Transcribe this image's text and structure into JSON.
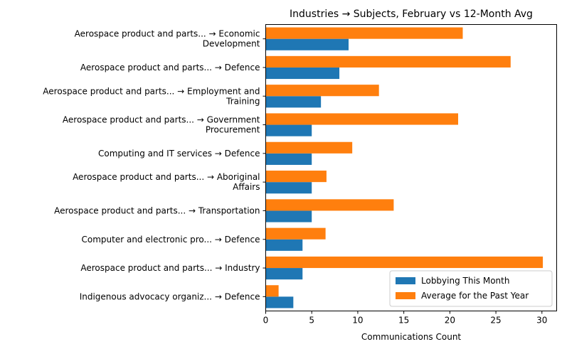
{
  "chart_data": {
    "type": "bar",
    "orientation": "horizontal",
    "title": "Industries → Subjects, February vs 12-Month Avg",
    "xlabel": "Communications Count",
    "ylabel": "",
    "xlim": [
      0,
      31.6
    ],
    "xticks": [
      0,
      5,
      10,
      15,
      20,
      25,
      30
    ],
    "grid": false,
    "legend_position": "lower-right",
    "categories": [
      [
        "Aerospace product and parts... → Economic",
        "Development"
      ],
      [
        "Aerospace product and parts... → Defence"
      ],
      [
        "Aerospace product and parts... → Employment and",
        "Training"
      ],
      [
        "Aerospace product and parts... → Government",
        "Procurement"
      ],
      [
        "Computing and IT services → Defence"
      ],
      [
        "Aerospace product and parts... → Aboriginal",
        "Affairs"
      ],
      [
        "Aerospace product and parts... → Transportation"
      ],
      [
        "Computer and electronic pro... → Defence"
      ],
      [
        "Aerospace product and parts... → Industry"
      ],
      [
        "Indigenous advocacy organiz... → Defence"
      ]
    ],
    "series": [
      {
        "name": "Lobbying This Month",
        "color": "#1f77b4",
        "values": [
          9,
          8,
          6,
          5,
          5,
          5,
          5,
          4,
          4,
          3
        ]
      },
      {
        "name": "Average for the Past Year",
        "color": "#ff7f0e",
        "values": [
          21.4,
          26.6,
          12.3,
          20.9,
          9.4,
          6.6,
          13.9,
          6.5,
          30.1,
          1.4
        ]
      }
    ]
  }
}
